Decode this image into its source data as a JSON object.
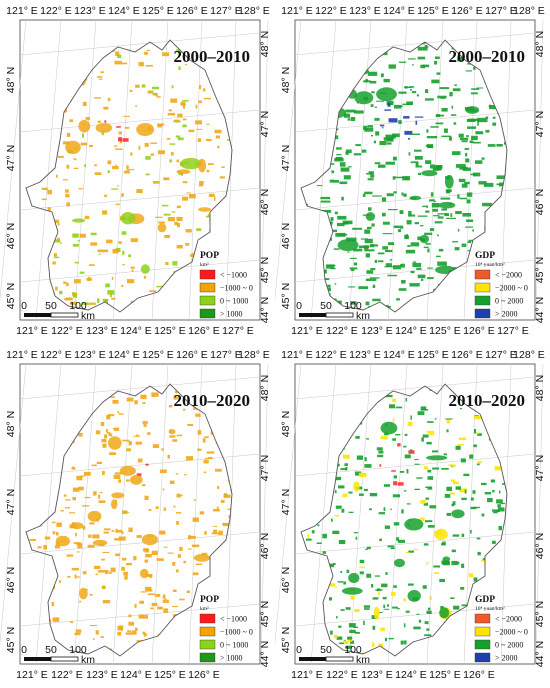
{
  "map": {
    "lon_ticks_top": [
      "121° E",
      "122° E",
      "123° E",
      "124° E",
      "125° E",
      "126° E",
      "127° E",
      "128° E"
    ],
    "lon_ticks_bottom": [
      "121° E",
      "122° E",
      "123° E",
      "124° E",
      "125° E",
      "126° E"
    ],
    "lat_ticks_left": [
      "48° N",
      "47° N",
      "46° N",
      "45° N"
    ],
    "lat_ticks_right": [
      "48° N",
      "47° N",
      "46° N",
      "45° N",
      "44° N"
    ],
    "scale": {
      "ticks": [
        "0",
        "50",
        "100"
      ],
      "unit": "km"
    }
  },
  "panels": [
    {
      "title": "2000–2010",
      "legend": {
        "title": "POP",
        "unit": "km²",
        "classes": [
          {
            "label": "< −1000",
            "color": "#ff1a1a"
          },
          {
            "label": "−1000 ~ 0",
            "color": "#f5a300"
          },
          {
            "label": "0 ~ 1000",
            "color": "#8ed11a"
          },
          {
            "label": "> 1000",
            "color": "#1a9a1a"
          }
        ]
      },
      "pattern": {
        "base": "#f0a818",
        "accent": "#8ed11a",
        "hot": "#ff2a2a"
      }
    },
    {
      "title": "2000–2010",
      "legend": {
        "title": "GDP",
        "unit": "10⁴ yuan/km²",
        "classes": [
          {
            "label": "< −2000",
            "color": "#f05a28"
          },
          {
            "label": "−2000 ~ 0",
            "color": "#ffe400"
          },
          {
            "label": "0 ~ 2000",
            "color": "#16a02e"
          },
          {
            "label": "> 2000",
            "color": "#1e3fae"
          }
        ]
      },
      "pattern": {
        "base": "#16a02e",
        "accent": "#16a02e",
        "hot": "#1e3fae"
      }
    },
    {
      "title": "2010–2020",
      "legend": {
        "title": "POP",
        "unit": "km²",
        "classes": [
          {
            "label": "< −1000",
            "color": "#ff1a1a"
          },
          {
            "label": "−1000 ~ 0",
            "color": "#f5a300"
          },
          {
            "label": "0 ~ 1000",
            "color": "#8ed11a"
          },
          {
            "label": "> 1000",
            "color": "#1a9a1a"
          }
        ]
      },
      "pattern": {
        "base": "#f0a818",
        "accent": "#f0a818",
        "hot": "#ff2a2a"
      }
    },
    {
      "title": "2010–2020",
      "legend": {
        "title": "GDP",
        "unit": "10⁴ yuan/km²",
        "classes": [
          {
            "label": "< −2000",
            "color": "#f05a28"
          },
          {
            "label": "−2000 ~ 0",
            "color": "#ffe400"
          },
          {
            "label": "0 ~ 2000",
            "color": "#16a02e"
          },
          {
            "label": "> 2000",
            "color": "#1e3fae"
          }
        ]
      },
      "pattern": {
        "base": "#16a02e",
        "accent": "#ffe400",
        "hot": "#ff3030"
      }
    }
  ]
}
